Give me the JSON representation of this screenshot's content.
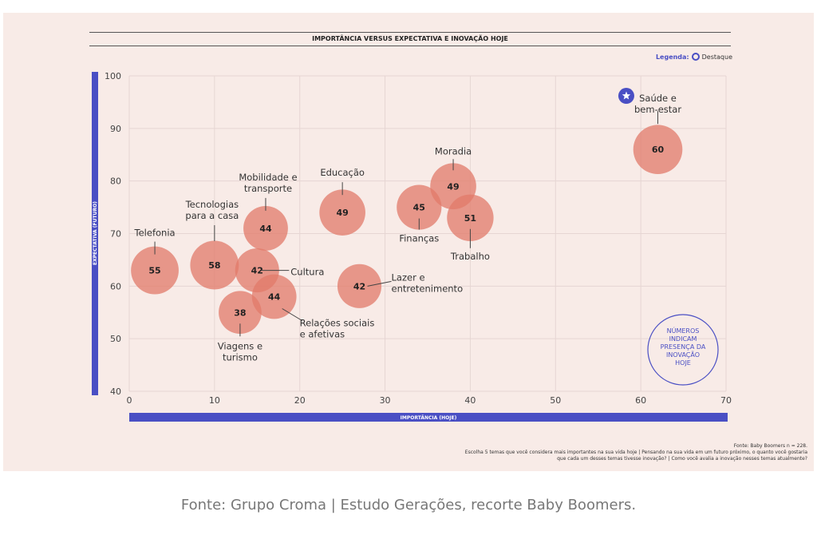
{
  "chart_data": {
    "type": "scatter",
    "title": "IMPORTÂNCIA VERSUS EXPECTATIVA E INOVAÇÃO HOJE",
    "xlabel": "IMPORTÂNCIA (HOJE)",
    "ylabel": "EXPECTATIVA (FUTURO)",
    "xlim": [
      0,
      70
    ],
    "ylim": [
      40,
      100
    ],
    "xticks": [
      0,
      10,
      20,
      30,
      40,
      50,
      60,
      70
    ],
    "yticks": [
      40,
      50,
      60,
      70,
      80,
      90,
      100
    ],
    "grid": true,
    "bubble_color": "#e2796a",
    "accent_color": "#4a4fc4",
    "points": [
      {
        "label": "Telefonia",
        "x": 3,
        "y": 63,
        "value": 55
      },
      {
        "label": "Tecnologias para a casa",
        "x": 10,
        "y": 64,
        "value": 58
      },
      {
        "label": "Mobilidade e transporte",
        "x": 16,
        "y": 71,
        "value": 44
      },
      {
        "label": "Cultura",
        "x": 15,
        "y": 63,
        "value": 42
      },
      {
        "label": "Relações sociais e afetivas",
        "x": 17,
        "y": 58,
        "value": 44
      },
      {
        "label": "Viagens e turismo",
        "x": 13,
        "y": 55,
        "value": 38
      },
      {
        "label": "Educação",
        "x": 25,
        "y": 74,
        "value": 49
      },
      {
        "label": "Lazer e entretenimento",
        "x": 27,
        "y": 60,
        "value": 42
      },
      {
        "label": "Finanças",
        "x": 34,
        "y": 75,
        "value": 45
      },
      {
        "label": "Moradia",
        "x": 38,
        "y": 79,
        "value": 49
      },
      {
        "label": "Trabalho",
        "x": 40,
        "y": 73,
        "value": 51
      },
      {
        "label": "Saúde e bem-estar",
        "x": 62,
        "y": 86,
        "value": 60,
        "highlight": true
      }
    ],
    "legend": {
      "title": "Legenda:",
      "entry": "Destaque",
      "placement": "top-right"
    },
    "annotation": "NÚMEROS INDICAM PRESENÇA DA INOVAÇÃO HOJE"
  },
  "footnote": {
    "line1": "Fonte: Baby Boomers n = 228.",
    "line2": "Escolha 5 temas que você considera mais importantes na sua vida hoje | Pensando na sua vida em um futuro próximo, o quanto você gostaria que cada um desses temas tivesse inovação? | Como você avalia a inovação nesses temas atualmente?"
  },
  "caption": "Fonte: Grupo Croma | Estudo Gerações, recorte Baby Boomers."
}
